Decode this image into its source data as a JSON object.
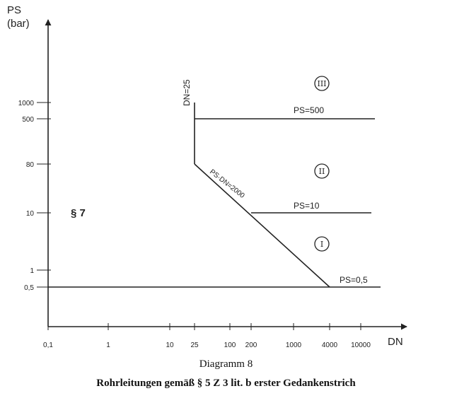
{
  "chart_data": {
    "type": "line",
    "x_axis": {
      "label": "DN",
      "scale": "log",
      "ticks": [
        "0,1",
        "1",
        "10",
        "25",
        "100",
        "200",
        "1000",
        "4000",
        "10000"
      ],
      "tick_values": [
        0.1,
        1,
        10,
        25,
        100,
        200,
        1000,
        4000,
        10000
      ]
    },
    "y_axis": {
      "label_line1": "PS",
      "label_line2": "(bar)",
      "scale": "piecewise",
      "ticks": [
        "0,5",
        "1",
        "10",
        "80",
        "500",
        "1000"
      ],
      "tick_values": [
        0.5,
        1,
        10,
        80,
        500,
        1000
      ]
    },
    "lines": [
      {
        "label": "PS=500",
        "points": [
          [
            25,
            500
          ],
          [
            10000,
            500
          ]
        ]
      },
      {
        "label": "PS=10",
        "points": [
          [
            200,
            10
          ],
          [
            10000,
            10
          ]
        ]
      },
      {
        "label": "PS=0,5",
        "points": [
          [
            0.1,
            0.5
          ],
          [
            10000,
            0.5
          ]
        ]
      },
      {
        "label": "DN=25",
        "points": [
          [
            25,
            80
          ],
          [
            25,
            1000
          ]
        ]
      },
      {
        "label": "PS·DN=2000",
        "points": [
          [
            25,
            80
          ],
          [
            4000,
            0.5
          ]
        ]
      }
    ],
    "regions": [
      "III",
      "II",
      "I"
    ],
    "annotation": "§ 7",
    "grid": false
  },
  "captions": {
    "figure": "Diagramm 8",
    "title": "Rohrleitungen gemäß § 5 Z 3 lit. b erster Gedankenstrich"
  },
  "colors": {
    "ink": "#222222"
  }
}
